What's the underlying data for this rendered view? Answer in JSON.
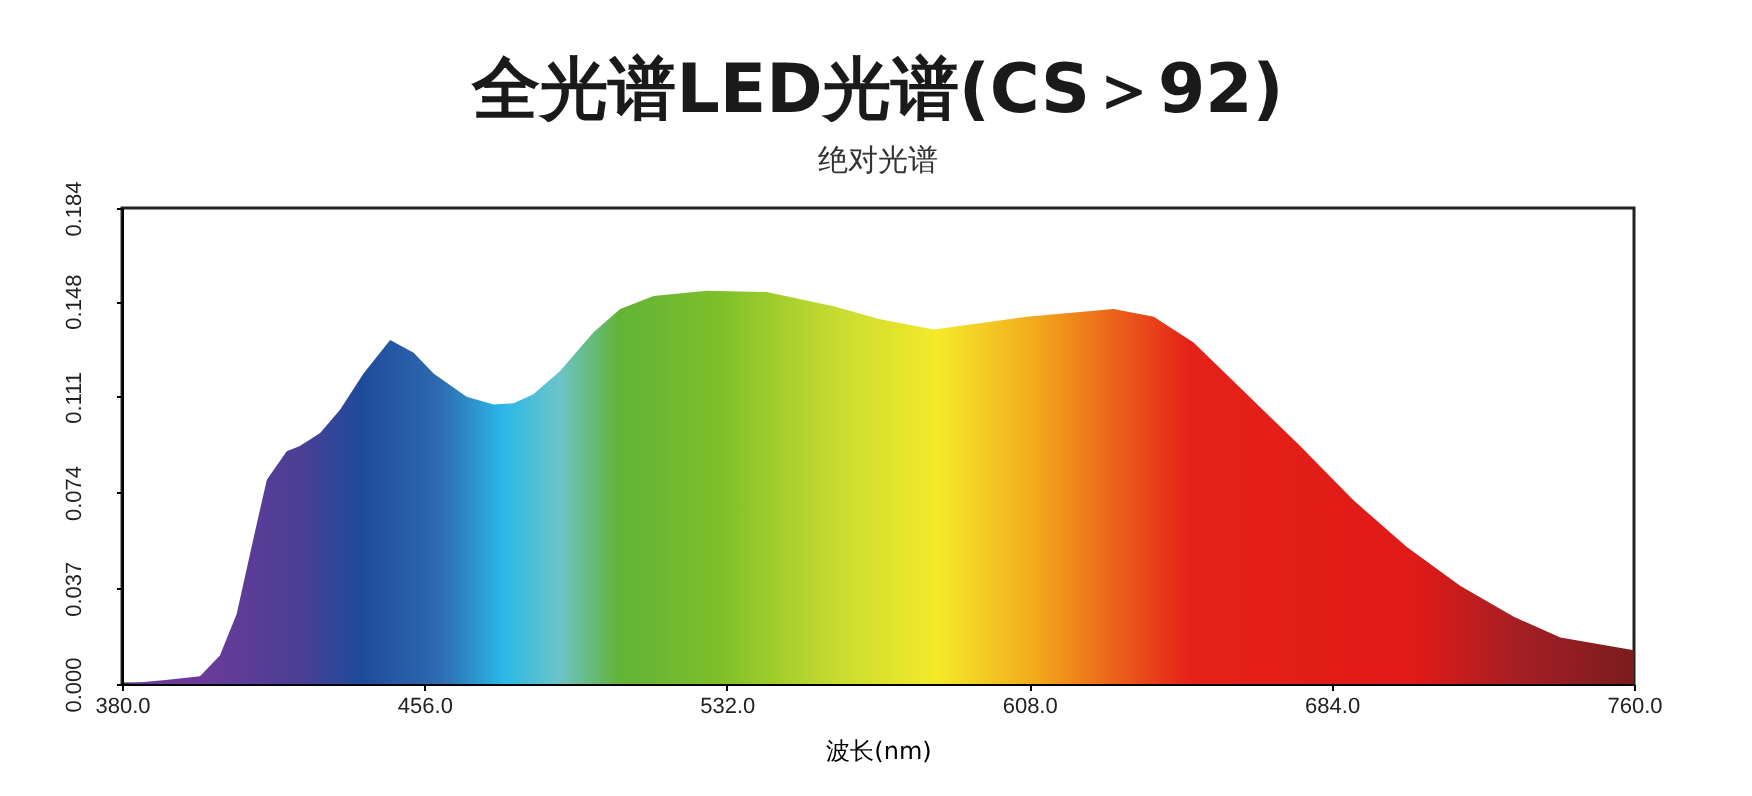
{
  "chart_data": {
    "type": "area",
    "title": "全光谱LED光谱(CS＞92)",
    "subtitle": "绝对光谱",
    "xlabel": "波长(nm)",
    "x": [
      380,
      391,
      399.6,
      404.6,
      408.8,
      413,
      416.4,
      421.4,
      424.7,
      429.8,
      434.8,
      440.7,
      447.4,
      453.3,
      458.3,
      466.6,
      473.4,
      478.4,
      483.4,
      490.1,
      498.5,
      505.2,
      513.6,
      527,
      542,
      558.8,
      570.5,
      584,
      607.4,
      629.2,
      639.3,
      649.3,
      662.7,
      676.1,
      689.5,
      702.9,
      716.3,
      729.8,
      741.5,
      760
    ],
    "values": [
      0,
      0.0015,
      0.003,
      0.011,
      0.027,
      0.056,
      0.079,
      0.09,
      0.092,
      0.097,
      0.106,
      0.12,
      0.133,
      0.128,
      0.12,
      0.111,
      0.108,
      0.1085,
      0.112,
      0.121,
      0.136,
      0.145,
      0.15,
      0.152,
      0.1515,
      0.146,
      0.141,
      0.137,
      0.142,
      0.145,
      0.142,
      0.132,
      0.112,
      0.092,
      0.071,
      0.053,
      0.038,
      0.026,
      0.018,
      0.013
    ],
    "xlim": [
      380,
      760
    ],
    "xticks": [
      {
        "value": 380,
        "label": "380.0"
      },
      {
        "value": 456,
        "label": "456.0"
      },
      {
        "value": 532,
        "label": "532.0"
      },
      {
        "value": 608,
        "label": "608.0"
      },
      {
        "value": 684,
        "label": "684.0"
      },
      {
        "value": 760,
        "label": "760.0"
      }
    ],
    "ylim": [
      0,
      0.184
    ],
    "yticks": [
      {
        "value": 0,
        "label": "0.000"
      },
      0.037,
      0.074,
      0.111,
      0.148,
      0.184
    ],
    "grid": false
  }
}
